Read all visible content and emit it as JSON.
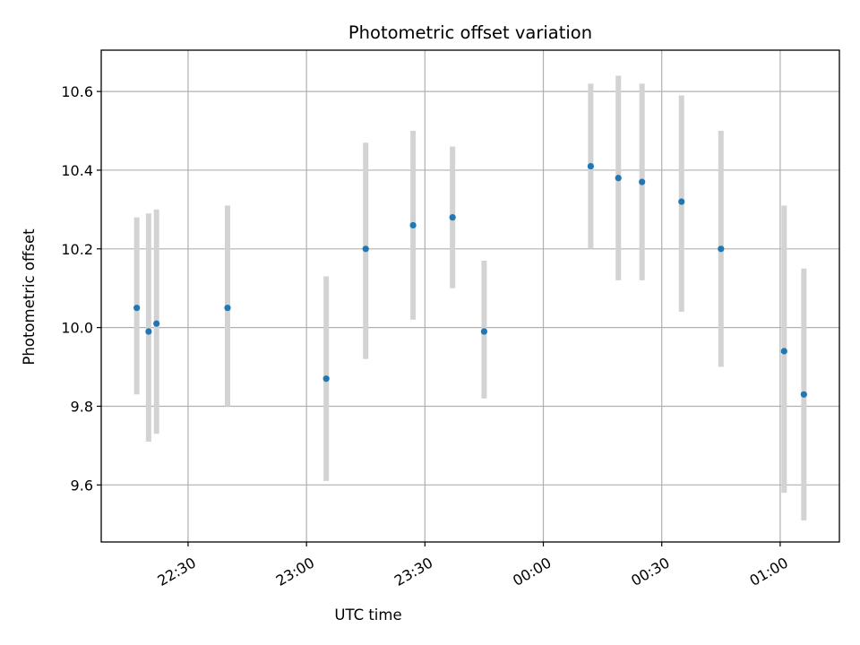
{
  "chart_data": {
    "type": "scatter",
    "title": "Photometric offset variation",
    "xlabel": "UTC time",
    "ylabel": "Photometric offset",
    "x_axis_kind": "time",
    "xlim": [
      "22:08",
      "01:15"
    ],
    "ylim": [
      9.455,
      10.705
    ],
    "x_ticks": [
      "22:30",
      "23:00",
      "23:30",
      "00:00",
      "00:30",
      "01:00"
    ],
    "y_ticks": [
      9.6,
      9.8,
      10.0,
      10.2,
      10.4,
      10.6
    ],
    "y_tick_labels": [
      "9.6",
      "9.8",
      "10.0",
      "10.2",
      "10.4",
      "10.6"
    ],
    "grid": true,
    "colors": {
      "points": "#1f77b4",
      "error_bars": "#d3d3d3",
      "grid": "#b0b0b0",
      "axes": "#000000"
    },
    "series": [
      {
        "points": [
          {
            "x": "22:17",
            "y": 10.05,
            "y_low": 9.83,
            "y_high": 10.28
          },
          {
            "x": "22:20",
            "y": 9.99,
            "y_low": 9.71,
            "y_high": 10.29
          },
          {
            "x": "22:22",
            "y": 10.01,
            "y_low": 9.73,
            "y_high": 10.3
          },
          {
            "x": "22:40",
            "y": 10.05,
            "y_low": 9.8,
            "y_high": 10.31
          },
          {
            "x": "23:05",
            "y": 9.87,
            "y_low": 9.61,
            "y_high": 10.13
          },
          {
            "x": "23:15",
            "y": 10.2,
            "y_low": 9.92,
            "y_high": 10.47
          },
          {
            "x": "23:27",
            "y": 10.26,
            "y_low": 10.02,
            "y_high": 10.5
          },
          {
            "x": "23:37",
            "y": 10.28,
            "y_low": 10.1,
            "y_high": 10.46
          },
          {
            "x": "23:45",
            "y": 9.99,
            "y_low": 9.82,
            "y_high": 10.17
          },
          {
            "x": "00:12",
            "y": 10.41,
            "y_low": 10.2,
            "y_high": 10.62
          },
          {
            "x": "00:19",
            "y": 10.38,
            "y_low": 10.12,
            "y_high": 10.64
          },
          {
            "x": "00:25",
            "y": 10.37,
            "y_low": 10.12,
            "y_high": 10.62
          },
          {
            "x": "00:35",
            "y": 10.32,
            "y_low": 10.04,
            "y_high": 10.59
          },
          {
            "x": "00:45",
            "y": 10.2,
            "y_low": 9.9,
            "y_high": 10.5
          },
          {
            "x": "01:01",
            "y": 9.94,
            "y_low": 9.58,
            "y_high": 10.31
          },
          {
            "x": "01:06",
            "y": 9.83,
            "y_low": 9.51,
            "y_high": 10.15
          }
        ]
      }
    ]
  }
}
